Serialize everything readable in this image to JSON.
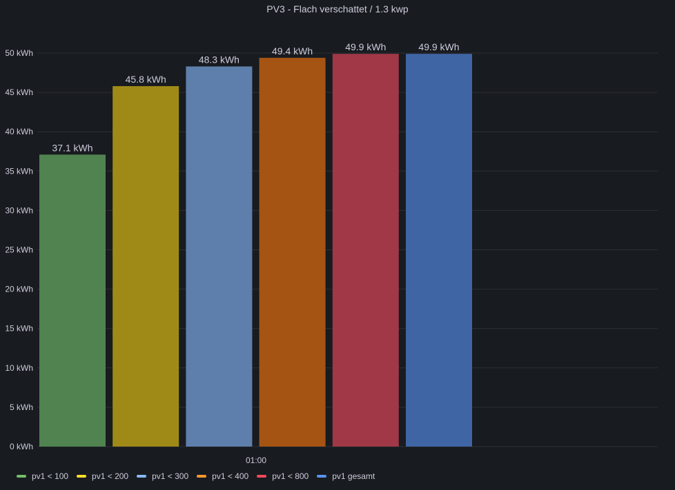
{
  "panel": {
    "title": "PV3 - Flach verschattet / 1.3 kwp"
  },
  "chart_data": {
    "type": "bar",
    "title": "PV3 - Flach verschattet / 1.3 kwp",
    "xlabel": "",
    "ylabel": "",
    "x_tick": "01:00",
    "unit": "kWh",
    "ylim": [
      0,
      50
    ],
    "yticks": [
      0,
      5,
      10,
      15,
      20,
      25,
      30,
      35,
      40,
      45,
      50
    ],
    "ytick_labels": [
      "0 kWh",
      "5 kWh",
      "10 kWh",
      "15 kWh",
      "20 kWh",
      "25 kWh",
      "30 kWh",
      "35 kWh",
      "40 kWh",
      "45 kWh",
      "50 kWh"
    ],
    "grid": true,
    "legend_position": "bottom-left",
    "series": [
      {
        "name": "pv1 < 100",
        "value": 37.1,
        "label": "37.1 kWh",
        "color": "#73bf69",
        "bar_color": "#508350"
      },
      {
        "name": "pv1 < 200",
        "value": 45.8,
        "label": "45.8 kWh",
        "color": "#fade2a",
        "bar_color": "#a08a17"
      },
      {
        "name": "pv1 < 300",
        "value": 48.3,
        "label": "48.3 kWh",
        "color": "#8ab8ff",
        "bar_color": "#5e7fab"
      },
      {
        "name": "pv1 < 400",
        "value": 49.4,
        "label": "49.4 kWh",
        "color": "#ff9830",
        "bar_color": "#a65414"
      },
      {
        "name": "pv1 < 800",
        "value": 49.9,
        "label": "49.9 kWh",
        "color": "#f2495c",
        "bar_color": "#a03847"
      },
      {
        "name": "pv1 gesamt",
        "value": 49.9,
        "label": "49.9 kWh",
        "color": "#5794f2",
        "bar_color": "#3f65a4"
      }
    ]
  }
}
